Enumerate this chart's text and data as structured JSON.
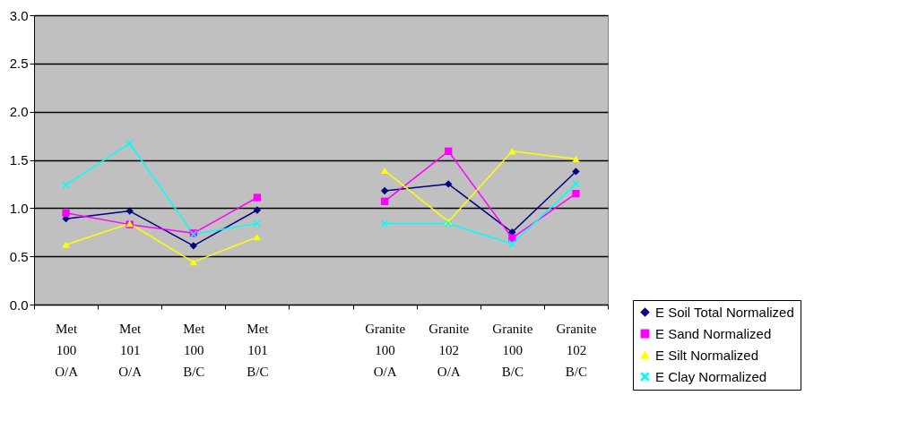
{
  "chart_data": {
    "type": "line",
    "categories": [
      "Met 100 O/A",
      "Met 101 O/A",
      "Met 100 B/C",
      "Met 101 B/C",
      null,
      "Granite 100 O/A",
      "Granite 102 O/A",
      "Granite 100 B/C",
      "Granite 102 B/C"
    ],
    "series": [
      {
        "name": "E Soil Total Normalized",
        "color": "#000080",
        "marker": "diamond",
        "values": [
          0.89,
          0.97,
          0.61,
          0.98,
          null,
          1.18,
          1.25,
          0.75,
          1.38
        ]
      },
      {
        "name": "E Sand Normalized",
        "color": "#ff00ff",
        "marker": "square",
        "values": [
          0.95,
          0.83,
          0.74,
          1.11,
          null,
          1.07,
          1.59,
          0.69,
          1.15
        ]
      },
      {
        "name": "E Silt Normalized",
        "color": "#ffff00",
        "marker": "triangle",
        "values": [
          0.62,
          0.84,
          0.44,
          0.7,
          null,
          1.39,
          0.86,
          1.59,
          1.51
        ]
      },
      {
        "name": "E Clay Normalized",
        "color": "#00ffff",
        "marker": "cross",
        "values": [
          1.24,
          1.67,
          0.73,
          0.84,
          null,
          0.84,
          0.84,
          0.63,
          1.25
        ]
      }
    ],
    "ylim": [
      0,
      3
    ],
    "yticks": [
      {
        "value": 0,
        "label": "0.0"
      },
      {
        "value": 0.5,
        "label": "0.5"
      },
      {
        "value": 1,
        "label": "1.0"
      },
      {
        "value": 1.5,
        "label": "1.5"
      },
      {
        "value": 2,
        "label": "2.0"
      },
      {
        "value": 2.5,
        "label": "2.5"
      },
      {
        "value": 3,
        "label": "3.0"
      }
    ],
    "grid": "y",
    "legend": "bottom right",
    "line_style": "solid"
  }
}
